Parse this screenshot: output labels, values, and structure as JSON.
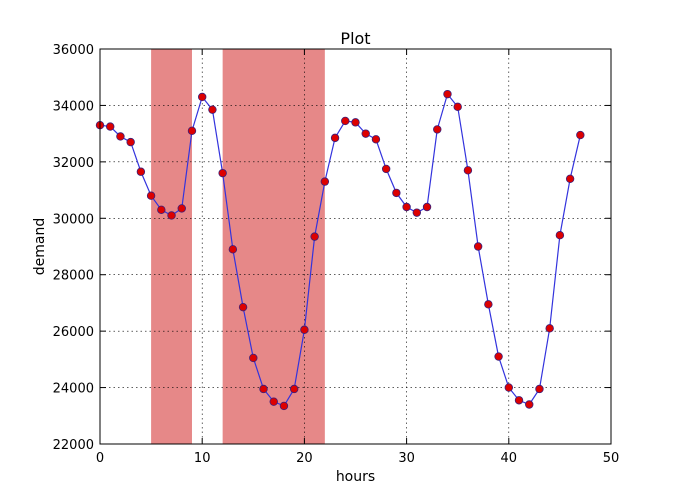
{
  "chart_data": {
    "type": "line",
    "title": "Plot",
    "xlabel": "hours",
    "ylabel": "demand",
    "xlim": [
      0,
      50
    ],
    "ylim": [
      22000,
      36000
    ],
    "xticks": [
      "0",
      "10",
      "20",
      "30",
      "40",
      "50"
    ],
    "yticks": [
      "22000",
      "24000",
      "26000",
      "28000",
      "30000",
      "32000",
      "34000",
      "36000"
    ],
    "grid": true,
    "line_color": "#3333dd",
    "marker_color": "#dd0000",
    "shade_color": "#e68888",
    "shaded_ranges": [
      [
        5,
        9
      ],
      [
        12,
        22
      ]
    ],
    "series": [
      {
        "x": [
          0,
          1,
          2,
          3,
          4,
          5,
          6,
          7,
          8,
          9,
          10,
          11,
          12,
          13,
          14,
          15,
          16,
          17,
          18,
          19,
          20,
          21,
          22,
          23,
          24,
          25,
          26,
          27,
          28,
          29,
          30,
          31,
          32,
          33,
          34,
          35,
          36,
          37,
          38,
          39,
          40,
          41,
          42,
          43,
          44,
          45,
          46,
          47
        ],
        "values": [
          33300,
          33250,
          32900,
          32700,
          31650,
          30800,
          30300,
          30100,
          30350,
          33100,
          34300,
          33850,
          31600,
          28900,
          26850,
          25050,
          23950,
          23500,
          23350,
          23950,
          26050,
          29350,
          31300,
          32850,
          33450,
          33400,
          33000,
          32800,
          31750,
          30900,
          30400,
          30200,
          30400,
          33150,
          34400,
          33950,
          31700,
          29000,
          26950,
          25100,
          24000,
          23550,
          23400,
          23950,
          26100,
          29400,
          31400,
          32950
        ]
      }
    ]
  }
}
